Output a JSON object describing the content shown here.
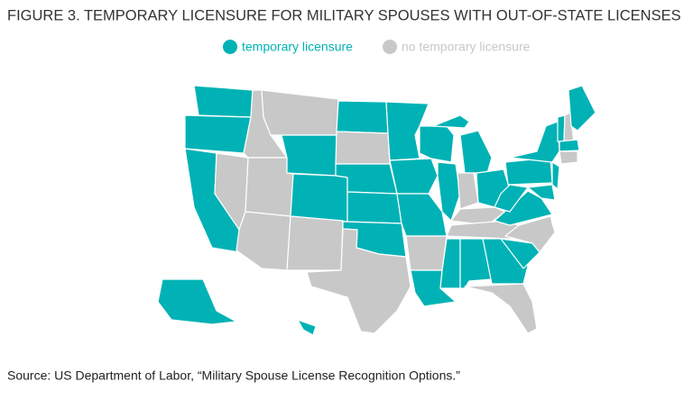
{
  "title": "FIGURE 3. TEMPORARY LICENSURE FOR MILITARY SPOUSES WITH OUT-OF-STATE LICENSES",
  "legend": [
    {
      "label": "temporary licensure",
      "color": "#00b2b5"
    },
    {
      "label": "no temporary licensure",
      "color": "#c8c8c8"
    }
  ],
  "source": "Source: US Department of Labor, “Military Spouse License Recognition Options.”"
}
